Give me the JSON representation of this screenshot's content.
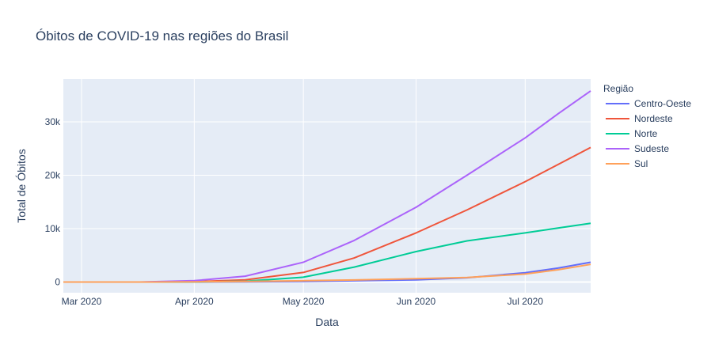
{
  "chart_data": {
    "type": "line",
    "title": "Óbitos de COVID-19 nas regiões do Brasil",
    "xlabel": "Data",
    "ylabel": "Total de Óbitos",
    "x_range": [
      "2020-02-25",
      "2020-07-19"
    ],
    "ylim": [
      -2000,
      38000
    ],
    "x_ticks": [
      {
        "date": "2020-03-01",
        "label": "Mar 2020"
      },
      {
        "date": "2020-04-01",
        "label": "Apr 2020"
      },
      {
        "date": "2020-05-01",
        "label": "May 2020"
      },
      {
        "date": "2020-06-01",
        "label": "Jun 2020"
      },
      {
        "date": "2020-07-01",
        "label": "Jul 2020"
      }
    ],
    "y_ticks": [
      {
        "value": 0,
        "label": "0"
      },
      {
        "value": 10000,
        "label": "10k"
      },
      {
        "value": 20000,
        "label": "20k"
      },
      {
        "value": 30000,
        "label": "30k"
      }
    ],
    "grid": true,
    "legend_title": "Região",
    "legend_position": "right",
    "series": [
      {
        "name": "Centro-Oeste",
        "color": "#636efa",
        "points": [
          [
            "2020-02-25",
            0
          ],
          [
            "2020-03-17",
            0
          ],
          [
            "2020-04-01",
            10
          ],
          [
            "2020-04-15",
            40
          ],
          [
            "2020-05-01",
            110
          ],
          [
            "2020-05-15",
            230
          ],
          [
            "2020-06-01",
            420
          ],
          [
            "2020-06-15",
            800
          ],
          [
            "2020-07-01",
            1750
          ],
          [
            "2020-07-10",
            2600
          ],
          [
            "2020-07-19",
            3700
          ]
        ]
      },
      {
        "name": "Nordeste",
        "color": "#ef553b",
        "points": [
          [
            "2020-02-25",
            0
          ],
          [
            "2020-03-20",
            0
          ],
          [
            "2020-04-01",
            80
          ],
          [
            "2020-04-15",
            400
          ],
          [
            "2020-05-01",
            1800
          ],
          [
            "2020-05-15",
            4500
          ],
          [
            "2020-06-01",
            9200
          ],
          [
            "2020-06-15",
            13500
          ],
          [
            "2020-07-01",
            18800
          ],
          [
            "2020-07-10",
            22000
          ],
          [
            "2020-07-19",
            25200
          ]
        ]
      },
      {
        "name": "Norte",
        "color": "#00cc96",
        "points": [
          [
            "2020-02-25",
            0
          ],
          [
            "2020-03-25",
            0
          ],
          [
            "2020-04-01",
            20
          ],
          [
            "2020-04-15",
            150
          ],
          [
            "2020-05-01",
            900
          ],
          [
            "2020-05-15",
            2800
          ],
          [
            "2020-06-01",
            5700
          ],
          [
            "2020-06-15",
            7700
          ],
          [
            "2020-07-01",
            9200
          ],
          [
            "2020-07-10",
            10100
          ],
          [
            "2020-07-19",
            11000
          ]
        ]
      },
      {
        "name": "Sudeste",
        "color": "#ab63fa",
        "points": [
          [
            "2020-02-25",
            0
          ],
          [
            "2020-03-17",
            0
          ],
          [
            "2020-04-01",
            250
          ],
          [
            "2020-04-15",
            1100
          ],
          [
            "2020-05-01",
            3700
          ],
          [
            "2020-05-15",
            7800
          ],
          [
            "2020-06-01",
            14000
          ],
          [
            "2020-06-15",
            20000
          ],
          [
            "2020-07-01",
            27000
          ],
          [
            "2020-07-10",
            31500
          ],
          [
            "2020-07-19",
            35800
          ]
        ]
      },
      {
        "name": "Sul",
        "color": "#ffa15a",
        "points": [
          [
            "2020-02-25",
            0
          ],
          [
            "2020-03-20",
            0
          ],
          [
            "2020-04-01",
            40
          ],
          [
            "2020-04-15",
            120
          ],
          [
            "2020-05-01",
            250
          ],
          [
            "2020-05-15",
            380
          ],
          [
            "2020-06-01",
            620
          ],
          [
            "2020-06-15",
            850
          ],
          [
            "2020-07-01",
            1500
          ],
          [
            "2020-07-10",
            2300
          ],
          [
            "2020-07-19",
            3300
          ]
        ]
      }
    ]
  }
}
